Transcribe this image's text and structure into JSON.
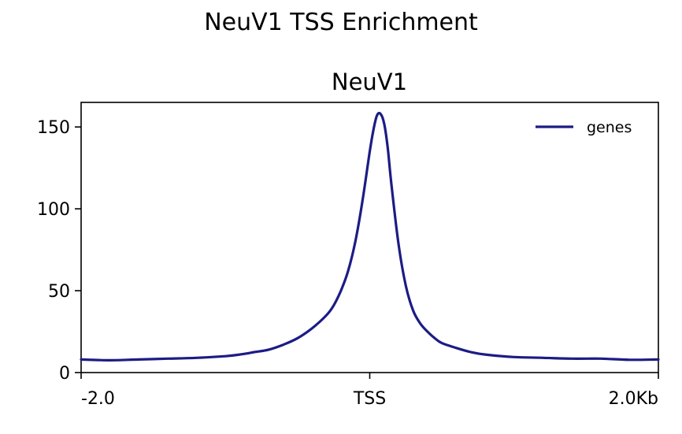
{
  "figure": {
    "suptitle": "NeuV1 TSS Enrichment"
  },
  "chart_data": {
    "type": "line",
    "title": "NeuV1",
    "xlabel": "",
    "ylabel": "",
    "x_ticks": [
      {
        "value": -2000,
        "label": "-2.0"
      },
      {
        "value": 0,
        "label": "TSS"
      },
      {
        "value": 2000,
        "label": "2.0Kb"
      }
    ],
    "y_ticks": [
      {
        "value": 0,
        "label": "0"
      },
      {
        "value": 50,
        "label": "50"
      },
      {
        "value": 100,
        "label": "100"
      },
      {
        "value": 150,
        "label": "150"
      }
    ],
    "xlim": [
      -2000,
      2000
    ],
    "ylim": [
      0,
      165
    ],
    "grid": false,
    "legend": {
      "position": "top-right",
      "entries": [
        "genes"
      ]
    },
    "series": [
      {
        "name": "genes",
        "color": "#1c1c85",
        "x": [
          -2000,
          -1800,
          -1600,
          -1400,
          -1200,
          -1000,
          -900,
          -800,
          -700,
          -600,
          -500,
          -400,
          -300,
          -250,
          -200,
          -150,
          -100,
          -50,
          0,
          25,
          50,
          75,
          100,
          125,
          150,
          200,
          250,
          300,
          350,
          400,
          450,
          500,
          600,
          700,
          800,
          1000,
          1200,
          1400,
          1600,
          1800,
          2000
        ],
        "values": [
          8,
          7.5,
          8,
          8.5,
          9,
          10,
          11,
          12.5,
          14,
          17,
          21,
          27,
          35,
          41,
          50,
          62,
          80,
          105,
          135,
          148,
          157,
          158,
          152,
          137,
          115,
          78,
          53,
          38,
          30,
          25,
          21,
          18,
          15,
          12.5,
          11,
          9.5,
          9,
          8.5,
          8.5,
          7.8,
          8
        ]
      }
    ]
  }
}
